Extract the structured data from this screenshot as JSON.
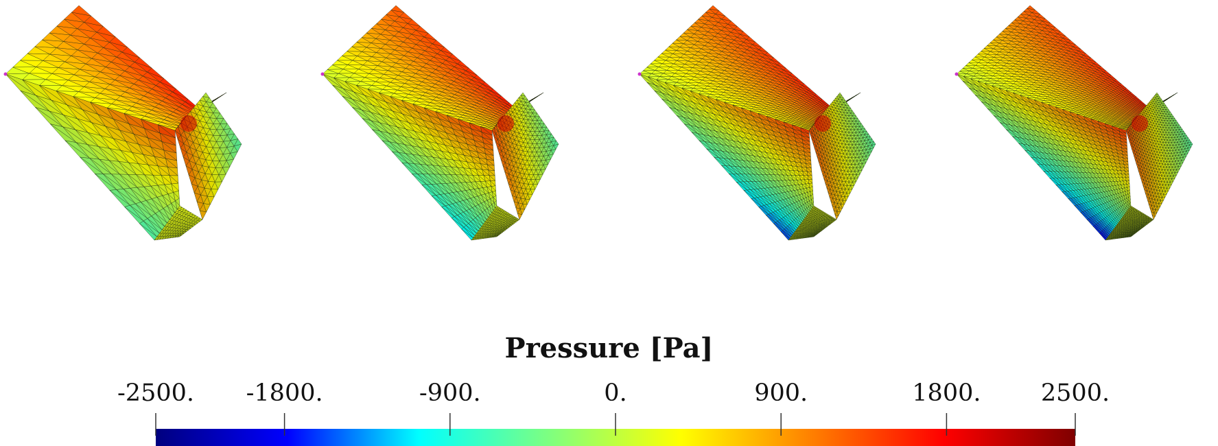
{
  "figure": {
    "panel_count": 4,
    "panels": [
      {
        "name": "panel-1",
        "mesh_density": "coarse"
      },
      {
        "name": "panel-2",
        "mesh_density": "medium"
      },
      {
        "name": "panel-3",
        "mesh_density": "fine"
      },
      {
        "name": "panel-4",
        "mesh_density": "finer"
      }
    ],
    "colormap": [
      "#00007f",
      "#0000ff",
      "#00ffff",
      "#7fff7f",
      "#ffff00",
      "#ff7f00",
      "#ff0000",
      "#7f0000"
    ]
  },
  "colorbar": {
    "title": "Pressure [Pa]",
    "min": -2500,
    "max": 2500,
    "ticks": [
      {
        "value": -2500,
        "label": "-2500."
      },
      {
        "value": -1800,
        "label": "-1800."
      },
      {
        "value": -900,
        "label": "-900."
      },
      {
        "value": 0,
        "label": "0."
      },
      {
        "value": 900,
        "label": "900."
      },
      {
        "value": 1800,
        "label": "1800."
      },
      {
        "value": 2500,
        "label": "2500."
      }
    ]
  }
}
